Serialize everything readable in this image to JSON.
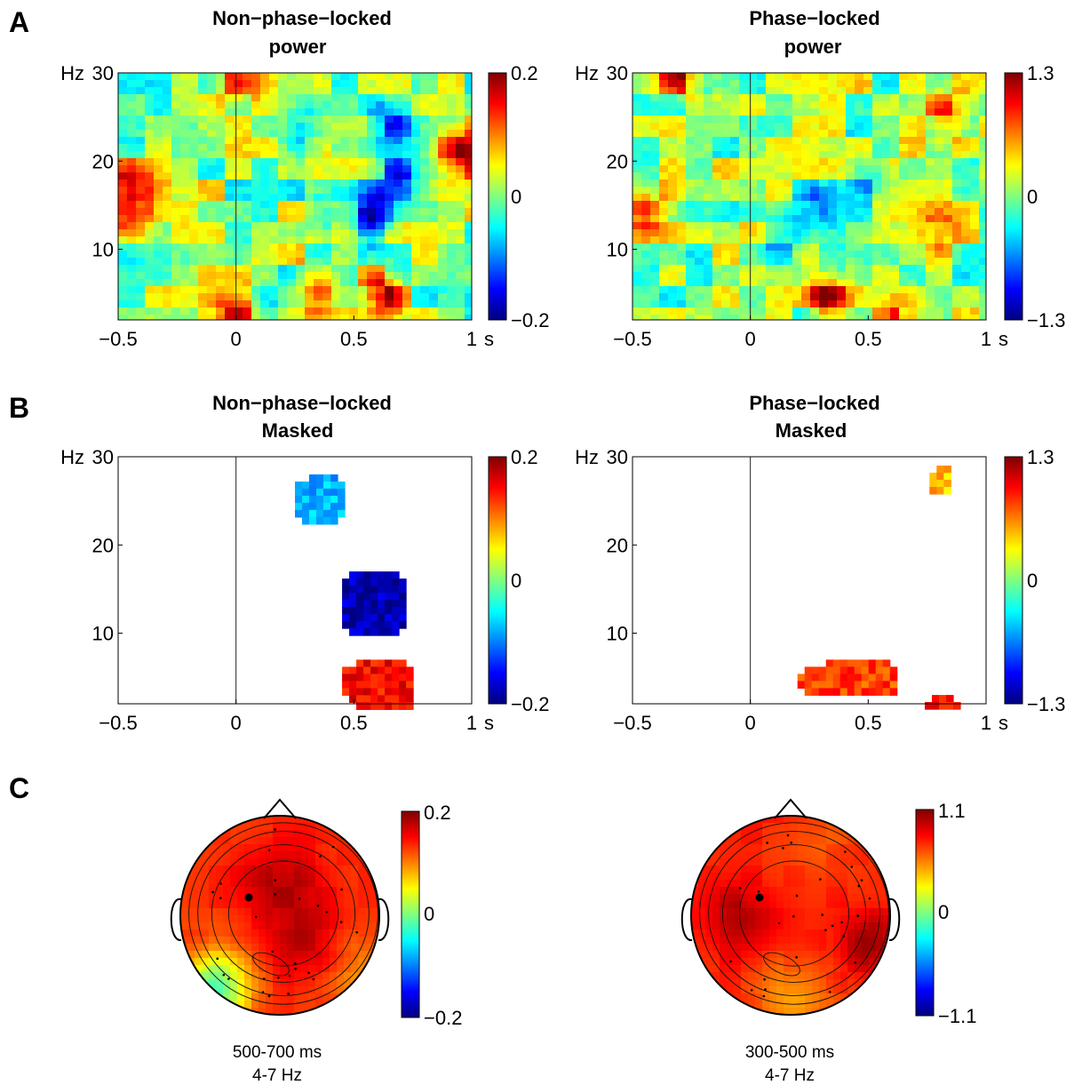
{
  "panels": {
    "A": {
      "letter": "A",
      "left": {
        "title_line1": "Non−phase−locked",
        "title_line2": "power",
        "colorbar": {
          "max": "0.2",
          "mid": "0",
          "min": "−0.2"
        }
      },
      "right": {
        "title_line1": "Phase−locked",
        "title_line2": "power",
        "colorbar": {
          "max": "1.3",
          "mid": "0",
          "min": "−1.3"
        }
      }
    },
    "B": {
      "letter": "B",
      "left": {
        "title_line1": "Non−phase−locked",
        "title_line2": "Masked",
        "colorbar": {
          "max": "0.2",
          "mid": "0",
          "min": "−0.2"
        }
      },
      "right": {
        "title_line1": "Phase−locked",
        "title_line2": "Masked",
        "colorbar": {
          "max": "1.3",
          "mid": "0",
          "min": "−1.3"
        }
      }
    },
    "C": {
      "letter": "C",
      "left": {
        "caption_line1": "500-700 ms",
        "caption_line2": "4-7 Hz",
        "colorbar": {
          "max": "0.2",
          "mid": "0",
          "min": "−0.2"
        }
      },
      "right": {
        "caption_line1": "300-500 ms",
        "caption_line2": "4-7 Hz",
        "colorbar": {
          "max": "1.1",
          "mid": "0",
          "min": "−1.1"
        }
      }
    }
  },
  "axes": {
    "y_unit": "Hz",
    "y_ticks": [
      "30",
      "20",
      "10"
    ],
    "x_ticks": [
      "−0.5",
      "0",
      "0.5",
      "1"
    ],
    "x_unit": "s"
  },
  "chart_data": [
    {
      "type": "heatmap",
      "panel": "A-left",
      "title": "Non−phase−locked power",
      "xlabel": "s",
      "ylabel": "Hz",
      "xlim": [
        -0.5,
        1
      ],
      "ylim": [
        2,
        30
      ],
      "clim": [
        -0.2,
        0.2
      ],
      "colormap": "jet",
      "blobs": [
        {
          "t": 0.57,
          "f": 14,
          "v": -0.19
        },
        {
          "t": 0.68,
          "f": 18,
          "v": -0.12
        },
        {
          "t": 0.66,
          "f": 24,
          "v": -0.14
        },
        {
          "t": 0.62,
          "f": 5,
          "v": 0.17
        },
        {
          "t": 0.35,
          "f": 6,
          "v": 0.12
        },
        {
          "t": 0.0,
          "f": 3,
          "v": 0.12
        },
        {
          "t": 0.0,
          "f": 29,
          "v": 0.12
        },
        {
          "t": -0.45,
          "f": 14,
          "v": 0.14
        },
        {
          "t": -0.45,
          "f": 18,
          "v": 0.12
        },
        {
          "t": 0.95,
          "f": 21,
          "v": 0.16
        },
        {
          "t": 0.28,
          "f": 23,
          "v": -0.08
        },
        {
          "t": 0.38,
          "f": 14,
          "v": -0.07
        }
      ]
    },
    {
      "type": "heatmap",
      "panel": "A-right",
      "title": "Phase−locked power",
      "xlabel": "s",
      "ylabel": "Hz",
      "xlim": [
        -0.5,
        1
      ],
      "ylim": [
        2,
        30
      ],
      "clim": [
        -1.3,
        1.3
      ],
      "colormap": "jet",
      "blobs": [
        {
          "t": 0.32,
          "f": 5,
          "v": 1.1
        },
        {
          "t": -0.3,
          "f": 30,
          "v": 0.9
        },
        {
          "t": -0.45,
          "f": 15,
          "v": 0.9
        },
        {
          "t": 0.82,
          "f": 25,
          "v": 0.7
        },
        {
          "t": 0.65,
          "f": 2.5,
          "v": 0.7
        },
        {
          "t": 0.5,
          "f": 18,
          "v": -0.6
        },
        {
          "t": 0.3,
          "f": 15,
          "v": -0.55
        },
        {
          "t": 0.8,
          "f": 12,
          "v": 0.5
        },
        {
          "t": 0.15,
          "f": 12,
          "v": -0.5
        }
      ]
    },
    {
      "type": "heatmap",
      "panel": "B-left",
      "title": "Non−phase−locked Masked",
      "xlabel": "s",
      "ylabel": "Hz",
      "xlim": [
        -0.5,
        1
      ],
      "ylim": [
        2,
        30
      ],
      "clim": [
        -0.2,
        0.2
      ],
      "colormap": "jet",
      "clusters": [
        {
          "t_range": [
            0.25,
            0.45
          ],
          "f_range": [
            23,
            28
          ],
          "v": -0.08
        },
        {
          "t_range": [
            0.45,
            0.72
          ],
          "f_range": [
            10,
            17
          ],
          "v": -0.18
        },
        {
          "t_range": [
            0.45,
            0.75
          ],
          "f_range": [
            2,
            7
          ],
          "v": 0.15
        }
      ]
    },
    {
      "type": "heatmap",
      "panel": "B-right",
      "title": "Phase−locked Masked",
      "xlabel": "s",
      "ylabel": "Hz",
      "xlim": [
        -0.5,
        1
      ],
      "ylim": [
        2,
        30
      ],
      "clim": [
        -1.3,
        1.3
      ],
      "colormap": "jet",
      "clusters": [
        {
          "t_range": [
            0.76,
            0.84
          ],
          "f_range": [
            26,
            29
          ],
          "v": 0.5
        },
        {
          "t_range": [
            0.2,
            0.62
          ],
          "f_range": [
            3,
            7
          ],
          "v": 0.8
        },
        {
          "t_range": [
            0.74,
            0.88
          ],
          "f_range": [
            2,
            3
          ],
          "v": 0.9
        }
      ]
    },
    {
      "type": "topography",
      "panel": "C-left",
      "time_window": "500-700 ms",
      "frequency": "4-7 Hz",
      "clim": [
        -0.2,
        0.2
      ],
      "colormap": "jet",
      "dominant_value": 0.13
    },
    {
      "type": "topography",
      "panel": "C-right",
      "time_window": "300-500 ms",
      "frequency": "4-7 Hz",
      "clim": [
        -1.1,
        1.1
      ],
      "colormap": "jet",
      "dominant_value": 0.75
    }
  ]
}
